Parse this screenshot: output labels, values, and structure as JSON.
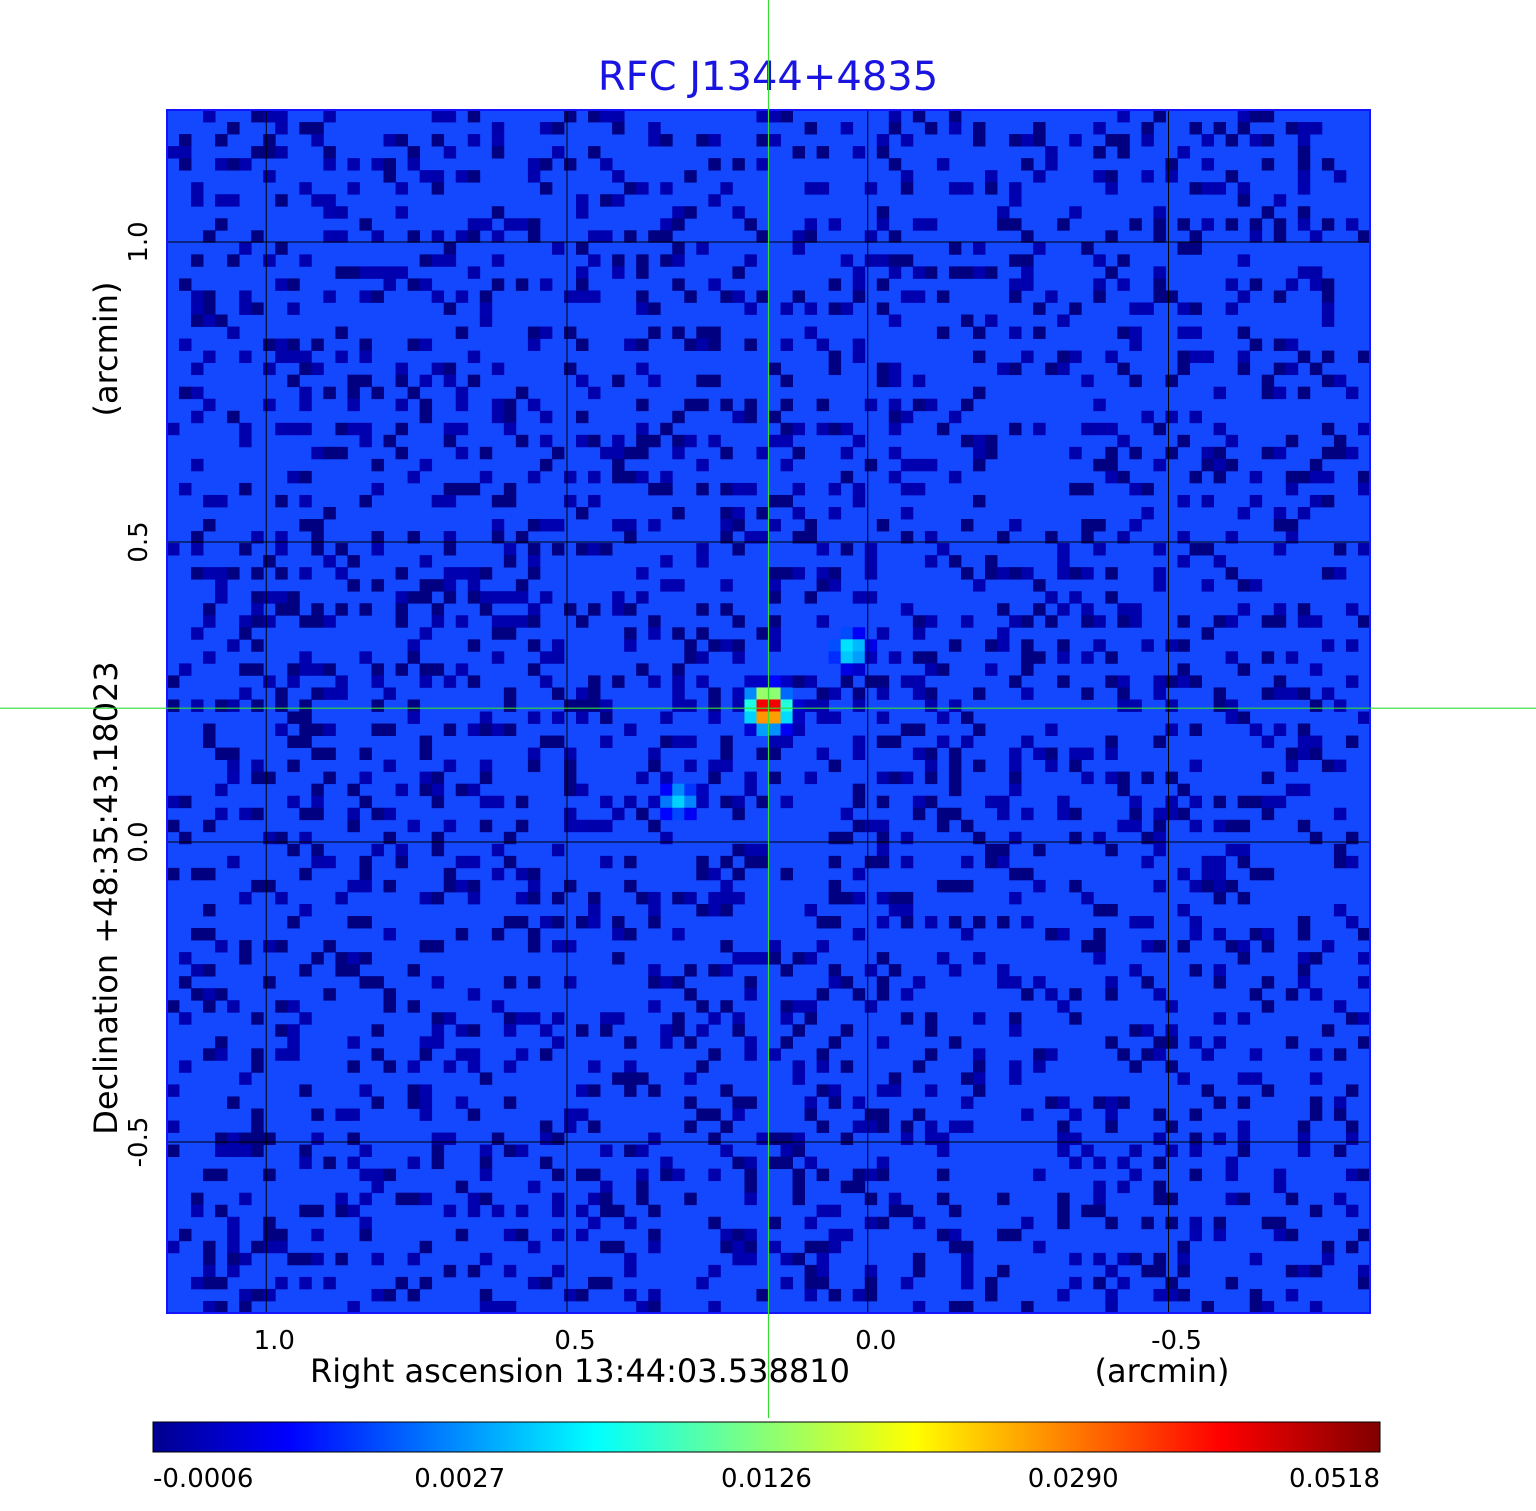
{
  "chart_data": {
    "type": "heatmap",
    "title": "RFC J1344+4835",
    "xlabel": "Right ascension  13:44:03.538810",
    "xunit": "(arcmin)",
    "ylabel": "Declination  +48:35:43.18023",
    "yunit": "(arcmin)",
    "xlim": [
      1.165,
      -0.835
    ],
    "ylim": [
      -0.785,
      1.22
    ],
    "x_ticks": [
      1.0,
      0.5,
      0.0,
      -0.5
    ],
    "x_tick_labels": [
      "1.0",
      "0.5",
      "0.0",
      "-0.5"
    ],
    "y_ticks": [
      1.0,
      0.5,
      0.0,
      -0.5
    ],
    "y_tick_labels": [
      "1.0",
      "0.5",
      "0.0",
      "-0.5"
    ],
    "grid": true,
    "crosshair": {
      "x": 0.165,
      "y": 0.223
    },
    "colormap": "jet",
    "colorbar": {
      "ticks": [
        -0.0006,
        0.0027,
        0.0126,
        0.029,
        0.0518
      ],
      "tick_labels": [
        "-0.0006",
        "0.0027",
        "0.0126",
        "0.0290",
        "0.0518"
      ]
    },
    "sources": [
      {
        "x": 0.165,
        "y": 0.223,
        "peak": 0.0518
      },
      {
        "x": 0.03,
        "y": 0.32,
        "peak": 0.0085
      },
      {
        "x": 0.315,
        "y": 0.07,
        "peak": 0.0065
      }
    ],
    "background_level": -0.0004
  },
  "colors": {
    "title": "#1a14e0",
    "grid": "#000000",
    "crosshair": "#33dd33",
    "frame": "#1414ff"
  }
}
